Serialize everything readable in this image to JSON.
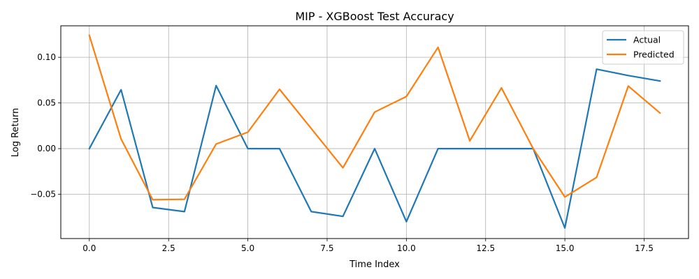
{
  "chart_data": {
    "type": "line",
    "title": "MIP - XGBoost Test Accuracy",
    "xlabel": "Time Index",
    "ylabel": "Log Return",
    "xlim": [
      -0.9,
      18.9
    ],
    "ylim": [
      -0.0985,
      0.1345
    ],
    "xticks": [
      0.0,
      2.5,
      5.0,
      7.5,
      10.0,
      12.5,
      15.0,
      17.5
    ],
    "xtick_labels": [
      "0.0",
      "2.5",
      "5.0",
      "7.5",
      "10.0",
      "12.5",
      "15.0",
      "17.5"
    ],
    "yticks": [
      -0.05,
      0.0,
      0.05,
      0.1
    ],
    "ytick_labels": [
      "−0.05",
      "0.00",
      "0.05",
      "0.10"
    ],
    "grid": true,
    "legend": "top-right",
    "x": [
      0,
      1,
      2,
      3,
      4,
      5,
      6,
      7,
      8,
      9,
      10,
      11,
      12,
      13,
      14,
      15,
      16,
      17,
      18
    ],
    "series": [
      {
        "name": "Actual",
        "color": "#1f77b4",
        "values": [
          0.0,
          0.0645,
          -0.0645,
          -0.069,
          0.069,
          0.0,
          0.0,
          -0.069,
          -0.0742,
          0.0,
          -0.08,
          0.0,
          0.0,
          0.0,
          0.0,
          -0.087,
          0.087,
          0.08,
          0.0741
        ]
      },
      {
        "name": "Predicted",
        "color": "#ff7f0e",
        "values": [
          0.124,
          0.0105,
          -0.056,
          -0.0555,
          0.005,
          0.018,
          0.065,
          0.022,
          -0.021,
          0.04,
          0.057,
          0.111,
          0.0085,
          0.0665,
          0.0,
          -0.053,
          -0.0315,
          0.0685,
          0.039
        ]
      }
    ]
  }
}
